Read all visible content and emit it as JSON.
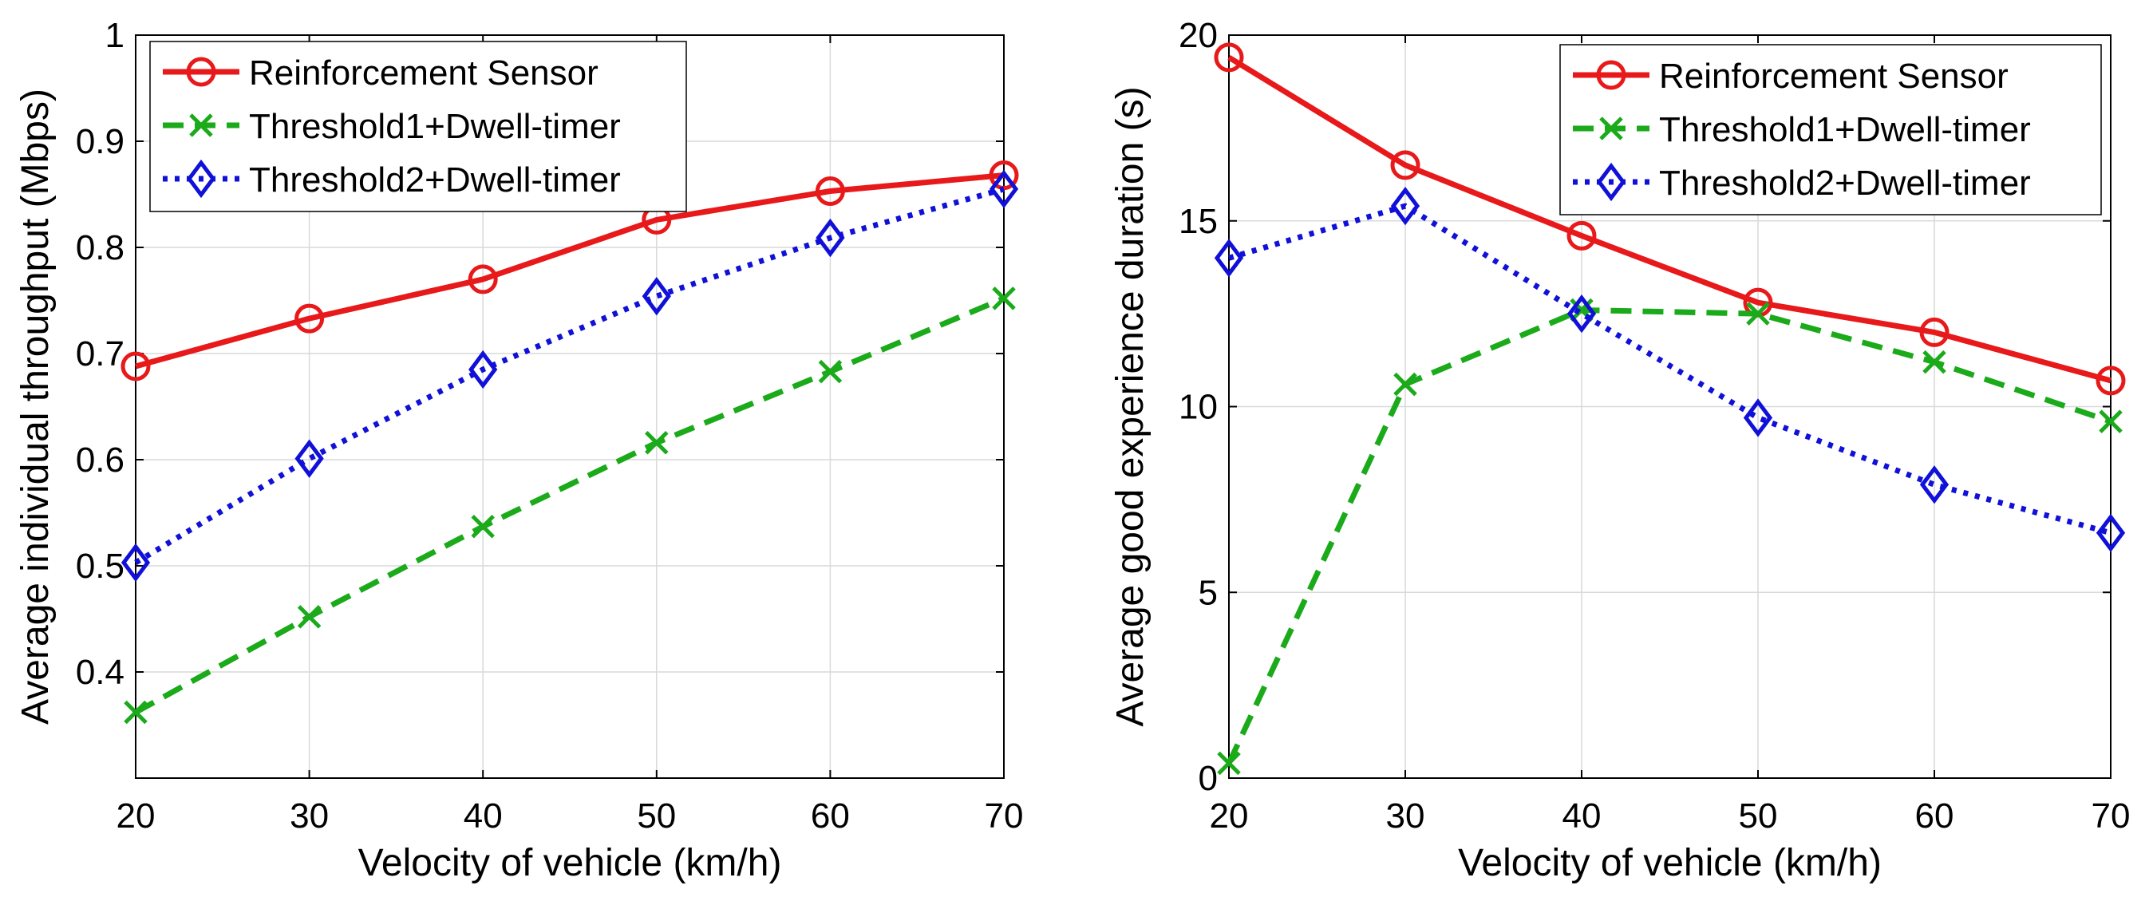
{
  "chart_data": [
    {
      "type": "line",
      "xlabel": "Velocity of vehicle (km/h)",
      "ylabel": "Average individual throughput (Mbps)",
      "x": [
        20,
        30,
        40,
        50,
        60,
        70
      ],
      "xlim": [
        20,
        70
      ],
      "ylim": [
        0.3,
        1
      ],
      "xticks": [
        "20",
        "30",
        "40",
        "50",
        "60",
        "70"
      ],
      "yticks": [
        "0.4",
        "0.5",
        "0.6",
        "0.7",
        "0.8",
        "0.9",
        "1"
      ],
      "grid": true,
      "legend_position": "top-left",
      "series": [
        {
          "name": "Reinforcement Sensor",
          "values": [
            0.688,
            0.733,
            0.77,
            0.826,
            0.853,
            0.868
          ],
          "color": "#e8191a",
          "linestyle": "solid",
          "marker": "circle"
        },
        {
          "name": "Threshold1+Dwell-timer",
          "values": [
            0.362,
            0.452,
            0.537,
            0.616,
            0.683,
            0.752
          ],
          "color": "#1aaa1a",
          "linestyle": "dashed",
          "marker": "x"
        },
        {
          "name": "Threshold2+Dwell-timer",
          "values": [
            0.503,
            0.601,
            0.685,
            0.754,
            0.809,
            0.855
          ],
          "color": "#1010d8",
          "linestyle": "dotted",
          "marker": "diamond"
        }
      ]
    },
    {
      "type": "line",
      "xlabel": "Velocity of vehicle (km/h)",
      "ylabel": "Average good experience duration (s)",
      "x": [
        20,
        30,
        40,
        50,
        60,
        70
      ],
      "xlim": [
        20,
        70
      ],
      "ylim": [
        0,
        20
      ],
      "xticks": [
        "20",
        "30",
        "40",
        "50",
        "60",
        "70"
      ],
      "yticks": [
        "0",
        "5",
        "10",
        "15",
        "20"
      ],
      "grid": true,
      "legend_position": "top-right",
      "series": [
        {
          "name": "Reinforcement Sensor",
          "values": [
            19.4,
            16.5,
            14.6,
            12.8,
            12.0,
            10.7
          ],
          "color": "#e8191a",
          "linestyle": "solid",
          "marker": "circle"
        },
        {
          "name": "Threshold1+Dwell-timer",
          "values": [
            0.4,
            10.6,
            12.6,
            12.5,
            11.2,
            9.6
          ],
          "color": "#1aaa1a",
          "linestyle": "dashed",
          "marker": "x"
        },
        {
          "name": "Threshold2+Dwell-timer",
          "values": [
            14.0,
            15.4,
            12.5,
            9.7,
            7.9,
            6.6
          ],
          "color": "#1010d8",
          "linestyle": "dotted",
          "marker": "diamond"
        }
      ]
    }
  ]
}
